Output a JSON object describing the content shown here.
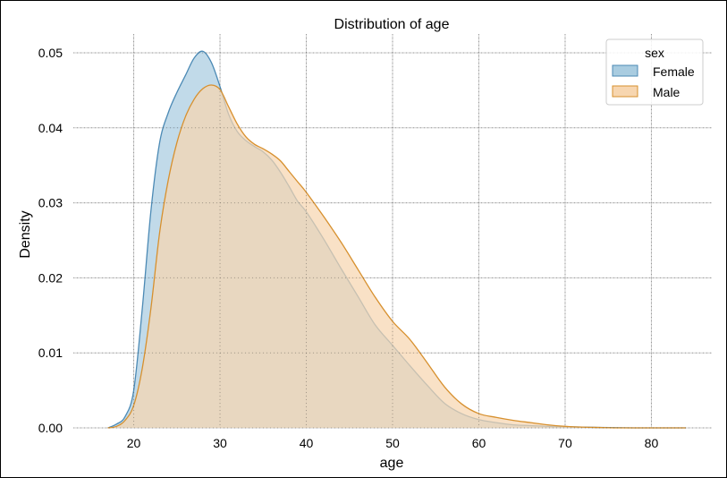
{
  "chart_data": {
    "type": "area",
    "title": "Distribution of age",
    "xlabel": "age",
    "ylabel": "Density",
    "xlim": [
      13,
      87
    ],
    "ylim": [
      0,
      0.0525
    ],
    "x_ticks": [
      20,
      30,
      40,
      50,
      60,
      70,
      80
    ],
    "x_tick_labels": [
      "20",
      "30",
      "40",
      "50",
      "60",
      "70",
      "80"
    ],
    "y_ticks": [
      0.0,
      0.01,
      0.02,
      0.03,
      0.04,
      0.05
    ],
    "y_tick_labels": [
      "0.00",
      "0.01",
      "0.02",
      "0.03",
      "0.04",
      "0.05"
    ],
    "grid": true,
    "legend": {
      "title": "sex",
      "placement": "top-right"
    },
    "series": [
      {
        "name": "Female",
        "color": "#4c8ab5",
        "fill": "#a9cce0",
        "x": [
          17,
          18,
          19,
          20,
          21,
          22,
          23,
          24,
          25,
          26,
          27,
          28,
          29,
          30,
          31,
          32,
          33,
          34,
          35,
          36,
          37,
          38,
          39,
          40,
          42,
          44,
          46,
          48,
          50,
          52,
          54,
          56,
          58,
          60,
          62,
          64,
          66,
          68,
          70,
          72,
          74,
          76,
          78,
          80,
          82,
          84
        ],
        "values": [
          0.0,
          0.0005,
          0.0015,
          0.005,
          0.016,
          0.029,
          0.038,
          0.042,
          0.0447,
          0.047,
          0.0493,
          0.0502,
          0.0487,
          0.0455,
          0.0418,
          0.0395,
          0.0383,
          0.0375,
          0.0368,
          0.0357,
          0.0341,
          0.0322,
          0.0302,
          0.0288,
          0.0252,
          0.0213,
          0.0175,
          0.0137,
          0.011,
          0.0083,
          0.0057,
          0.0033,
          0.0019,
          0.0011,
          0.0007,
          0.0004,
          0.0003,
          0.0002,
          0.00015,
          0.0001,
          5e-05,
          3e-05,
          0.0,
          0.0,
          0.0,
          0.0
        ]
      },
      {
        "name": "Male",
        "color": "#d7902e",
        "fill": "#f7d6b0",
        "x": [
          17,
          18,
          19,
          20,
          21,
          22,
          23,
          24,
          25,
          26,
          27,
          28,
          29,
          30,
          31,
          32,
          33,
          34,
          35,
          36,
          37,
          38,
          39,
          40,
          42,
          44,
          46,
          48,
          50,
          52,
          54,
          56,
          58,
          60,
          62,
          64,
          66,
          68,
          70,
          72,
          74,
          76,
          78,
          80,
          82,
          84
        ],
        "values": [
          0.0,
          0.0002,
          0.001,
          0.003,
          0.008,
          0.016,
          0.026,
          0.033,
          0.038,
          0.0415,
          0.0438,
          0.0452,
          0.0457,
          0.0451,
          0.0428,
          0.0405,
          0.0388,
          0.0378,
          0.0372,
          0.0365,
          0.0356,
          0.0342,
          0.0328,
          0.0314,
          0.0282,
          0.0248,
          0.0211,
          0.0174,
          0.0142,
          0.0118,
          0.0087,
          0.0055,
          0.0032,
          0.0019,
          0.0014,
          0.001,
          0.0007,
          0.0004,
          0.0002,
          0.0001,
          5e-05,
          0.0,
          0.0,
          0.0,
          0.0,
          0.0
        ]
      }
    ]
  }
}
